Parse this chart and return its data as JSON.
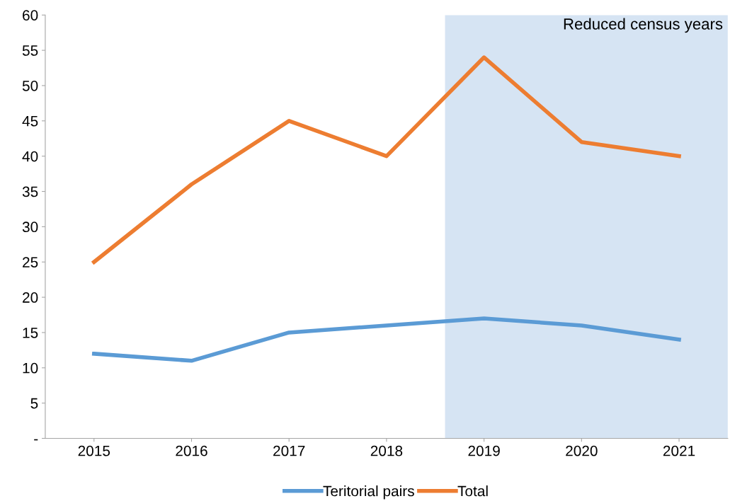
{
  "chart_data": {
    "type": "line",
    "x": [
      2015,
      2016,
      2017,
      2018,
      2019,
      2020,
      2021
    ],
    "series": [
      {
        "name": "Teritorial pairs",
        "color": "#5b9bd5",
        "values": [
          12,
          11,
          15,
          16,
          17,
          16,
          14
        ]
      },
      {
        "name": "Total",
        "color": "#ed7d31",
        "values": [
          25,
          36,
          45,
          40,
          54,
          42,
          40
        ]
      }
    ],
    "xlim": [
      2014.5,
      2021.5
    ],
    "xticks": [
      2015,
      2016,
      2017,
      2018,
      2019,
      2020,
      2021
    ],
    "ylim": [
      0,
      60
    ],
    "yticks": [
      {
        "value": 0,
        "label": "-"
      },
      5,
      10,
      15,
      20,
      25,
      30,
      35,
      40,
      45,
      50,
      55,
      60
    ],
    "bands": [
      {
        "axis": "x",
        "from": 2018.6,
        "to": 2021.5,
        "label": "Reduced census years",
        "color": "#d6e4f3"
      }
    ],
    "grid": false,
    "legend": "bottom",
    "marker": "none",
    "line_style": "solid"
  }
}
